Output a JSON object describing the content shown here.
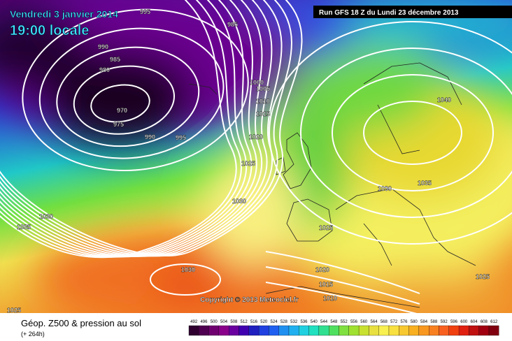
{
  "header": {
    "date": "Vendredi 3 janvier 2014",
    "time": "19:00 locale",
    "run": "Run GFS 18 Z du Lundi 23 décembre 2013"
  },
  "copyright": "Copyright © 2013 Meteociel.fr",
  "isobars": [
    "995",
    "985",
    "990",
    "985",
    "980",
    "970",
    "975",
    "990",
    "995",
    "1000",
    "1005",
    "1010",
    "1015",
    "1020",
    "1025",
    "1030",
    "1035",
    "1030",
    "1040",
    "1035",
    "1030",
    "1025",
    "1030",
    "1020",
    "1015",
    "1010",
    "1025",
    "1025"
  ],
  "footer": {
    "title": "Géop. Z500 & pression au sol",
    "range": "(+ 264h)",
    "scale": [
      "492",
      "496",
      "500",
      "504",
      "508",
      "512",
      "516",
      "520",
      "524",
      "528",
      "532",
      "536",
      "540",
      "544",
      "548",
      "552",
      "556",
      "560",
      "564",
      "568",
      "572",
      "576",
      "580",
      "584",
      "588",
      "592",
      "596",
      "600",
      "604",
      "608",
      "612"
    ]
  }
}
